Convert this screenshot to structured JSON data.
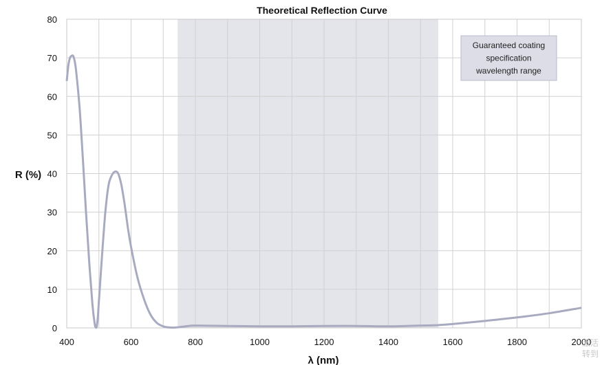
{
  "chart_data": {
    "type": "line",
    "title": "Theoretical Reflection Curve",
    "xlabel": "λ (nm)",
    "ylabel": "R (%)",
    "xlim": [
      400,
      2000
    ],
    "ylim": [
      0,
      80
    ],
    "xticks": [
      400,
      600,
      800,
      1000,
      1200,
      1400,
      1600,
      1800,
      2000
    ],
    "yticks": [
      0,
      10,
      20,
      30,
      40,
      50,
      60,
      70,
      80
    ],
    "grid": true,
    "band": {
      "x": [
        745,
        1555
      ],
      "label_lines": [
        "Guaranteed coating",
        "specification",
        "wavelength range"
      ]
    },
    "series_color": "#a8aac0",
    "band_color": "#e4e5eb",
    "series": [
      {
        "x": [
          400,
          405,
          410,
          415,
          420,
          425,
          430,
          440,
          450,
          460,
          470,
          480,
          487,
          490,
          493,
          497,
          500,
          510,
          520,
          530,
          540,
          550,
          560,
          570,
          580,
          590,
          600,
          620,
          640,
          660,
          680,
          700,
          720,
          740,
          760,
          780,
          800,
          900,
          1000,
          1100,
          1200,
          1300,
          1400,
          1500,
          1550,
          1600,
          1700,
          1800,
          1900,
          2000
        ],
        "y": [
          64,
          68,
          70,
          70.5,
          70.5,
          69,
          66,
          57,
          44,
          30,
          17,
          6,
          1,
          0.2,
          0.3,
          3,
          7,
          19,
          30,
          37,
          39.5,
          40.5,
          40,
          37,
          32,
          26,
          21,
          13,
          7.5,
          3.5,
          1.3,
          0.4,
          0.1,
          0.1,
          0.3,
          0.5,
          0.6,
          0.5,
          0.4,
          0.4,
          0.5,
          0.5,
          0.4,
          0.6,
          0.7,
          1,
          1.8,
          2.7,
          3.8,
          5.2
        ]
      }
    ]
  },
  "watermark": {
    "line1": "激活",
    "line2": "转到"
  }
}
